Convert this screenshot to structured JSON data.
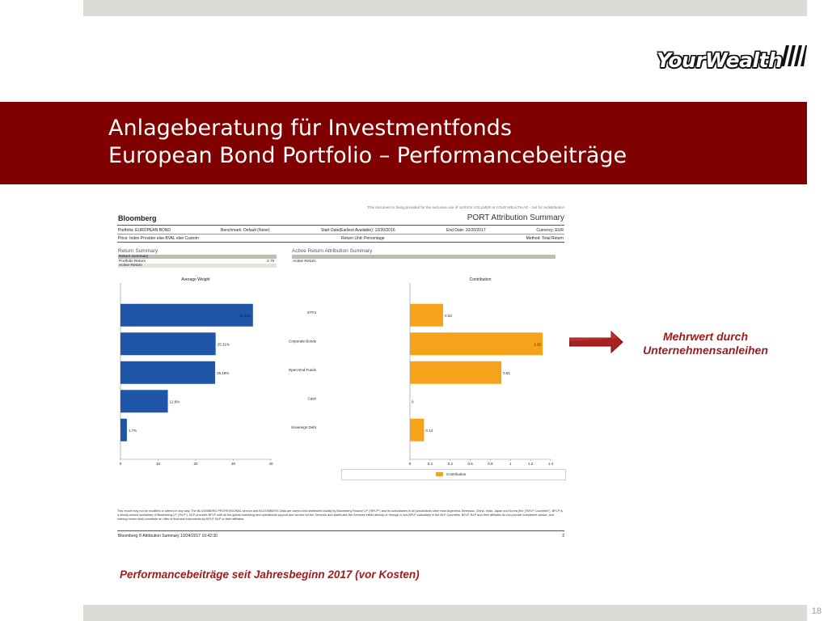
{
  "page": {
    "number": "18"
  },
  "logo": {
    "text": "YourWealth"
  },
  "title": {
    "line1": "Anlageberatung für Investmentfonds",
    "line2": "European Bond Portfolio – Performancebeiträge"
  },
  "report": {
    "disclaimer_top": "This document is being provided for the exclusive use of ULRICH VOLLMER at YOUR WEALTH AG - Not for redistribution",
    "brand": "Bloomberg",
    "title": "PORT Attribution Summary",
    "portfolio": "Portfolio: EUROPEAN BOND",
    "benchmark": "Benchmark: Default (None)",
    "start_date": "Start Date(Earliest Available): 12/30/2016",
    "end_date": "End Date: 10/20/2017",
    "currency": "Currency: EUR",
    "price": "Price: Index Provider else BVAL else Custom",
    "return_unit": "Return Unit: Percentage",
    "method": "Method: Total Return",
    "return_summary": {
      "heading": "Return Summary",
      "header_row": "Return Summary",
      "portfolio_label": "Portfolio Return",
      "portfolio_value": "2.70",
      "active_label": "Active Return"
    },
    "active_summary": {
      "heading": "Active Return Attribution Summary",
      "active_label": "Active Return"
    },
    "footer_note": "This report may not be modified or altered in any way. The BLOOMBERG PROFESSIONAL service and BLOOMBERG Data are owned and distributed locally by Bloomberg Finance LP (\"BFLP\") and its subsidiaries in all jurisdictions other than Argentina, Bermuda, China, India, Japan and Korea (the (\"BFLP Countries\"). BFLP is a wholly-owned subsidiary of Bloomberg LP (\"BLP\"). BLP provides BFLP with all the global marketing and operational support and service for the Services and distributes the Services either directly or through a non-BFLP subsidiary in the BLP Countries. BFLP, BLP and their affiliates do not provide investment advice, and nothing herein shall constitute an offer of financial instruments by BFLP, BLP or their affiliates.",
    "footer_left": "Bloomberg ®    Attribution Summary    10/24/2017 10:42:30",
    "footer_right": "2",
    "legend_label": "Contribution"
  },
  "chart_data": [
    {
      "type": "bar",
      "orientation": "horizontal",
      "title": "Average Weight",
      "categories": [
        "ETFs",
        "Corporate Bonds",
        "Open-End Funds",
        "Cash",
        "Sovereign Debt"
      ],
      "values": [
        35.23,
        25.31,
        25.18,
        12.6,
        1.7
      ],
      "data_labels": [
        "35.23%",
        "25.31%",
        "25.18%",
        "12.6%",
        "1.7%"
      ],
      "xlim": [
        0,
        40
      ],
      "xticks": [
        "0",
        "10",
        "20",
        "30",
        "40"
      ],
      "color": "#1f56a8"
    },
    {
      "type": "bar",
      "orientation": "horizontal",
      "title": "Contribution",
      "categories": [
        "ETFs",
        "Corporate Bonds",
        "Open-End Funds",
        "Cash",
        "Sovereign Debt"
      ],
      "values": [
        0.33,
        1.32,
        0.91,
        0,
        0.14
      ],
      "data_labels": [
        "0.33",
        "1.32",
        "0.91",
        "0",
        "0.14"
      ],
      "xlim": [
        0,
        1.4
      ],
      "xticks": [
        "0",
        "0.2",
        "0.4",
        "0.6",
        "0.8",
        "1",
        "1.2",
        "1.4"
      ],
      "color": "#f5a31a",
      "legend": "Contribution"
    }
  ],
  "annotation": {
    "line1": "Mehrwert durch",
    "line2": "Unternehmensanleihen"
  },
  "caption": "Performancebeiträge seit Jahresbeginn 2017 (vor Kosten)"
}
